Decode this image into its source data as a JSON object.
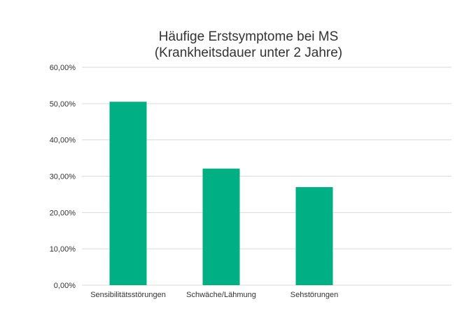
{
  "chart_data": {
    "type": "bar",
    "title_lines": [
      "Häufige Erstsymptome bei MS",
      "(Krankheitsdauer unter 2 Jahre)"
    ],
    "categories": [
      "Sensibilitätsstörungen",
      "Schwäche/Lähmung",
      "Sehstörungen"
    ],
    "values": [
      0.505,
      0.321,
      0.27
    ],
    "ylim": [
      0,
      0.6
    ],
    "yticks": [
      0,
      0.1,
      0.2,
      0.3,
      0.4,
      0.5,
      0.6
    ],
    "ytick_labels": [
      "0,00%",
      "10,00%",
      "20,00%",
      "30,00%",
      "40,00%",
      "50,00%",
      "60,00%"
    ],
    "xlabel": "",
    "ylabel": "",
    "grid": true,
    "legend": "none",
    "bar_color": "#00b084"
  }
}
